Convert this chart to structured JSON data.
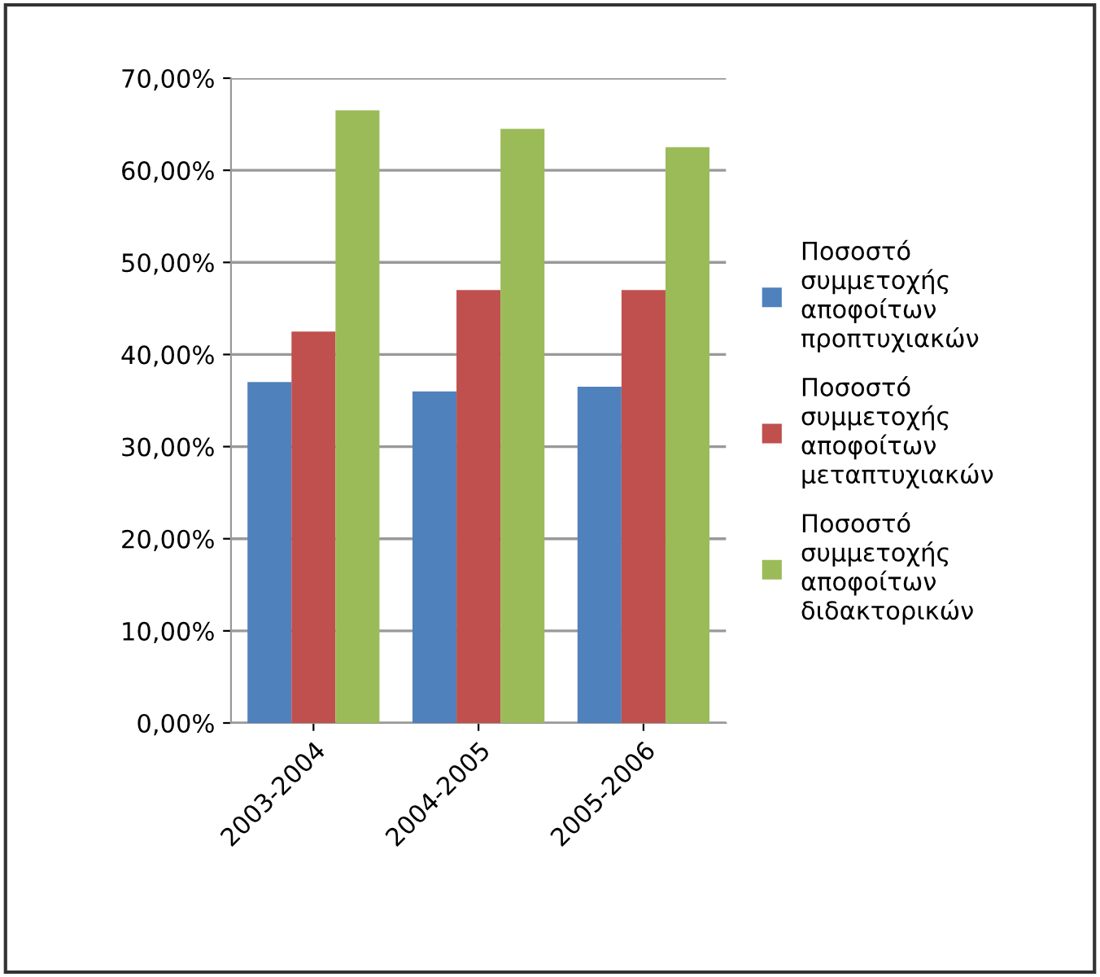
{
  "chart_data": {
    "type": "bar",
    "categories": [
      "2003-2004",
      "2004-2005",
      "2005-2006"
    ],
    "series": [
      {
        "name": "Ποσοστό συμμετοχής αποφοίτων προπτυχιακών",
        "color": "#4f81bd",
        "values": [
          37,
          36,
          36.5
        ]
      },
      {
        "name": "Ποσοστό συμμετοχής αποφοίτων μεταπτυχιακών",
        "color": "#c0504d",
        "values": [
          42.5,
          47,
          47
        ]
      },
      {
        "name": "Ποσοστό συμμετοχής αποφοίτων διδακτορικών",
        "color": "#9bbb59",
        "values": [
          66.5,
          64.5,
          62.5
        ]
      }
    ],
    "ylim": [
      0,
      70
    ],
    "yticks": [
      {
        "value": 0,
        "label": "0,00%"
      },
      {
        "value": 10,
        "label": "10,00%"
      },
      {
        "value": 20,
        "label": "20,00%"
      },
      {
        "value": 30,
        "label": "30,00%"
      },
      {
        "value": 40,
        "label": "40,00%"
      },
      {
        "value": 50,
        "label": "50,00%"
      },
      {
        "value": 60,
        "label": "60,00%"
      },
      {
        "value": 70,
        "label": "70,00%"
      }
    ],
    "grid": "y",
    "legend": "right"
  }
}
